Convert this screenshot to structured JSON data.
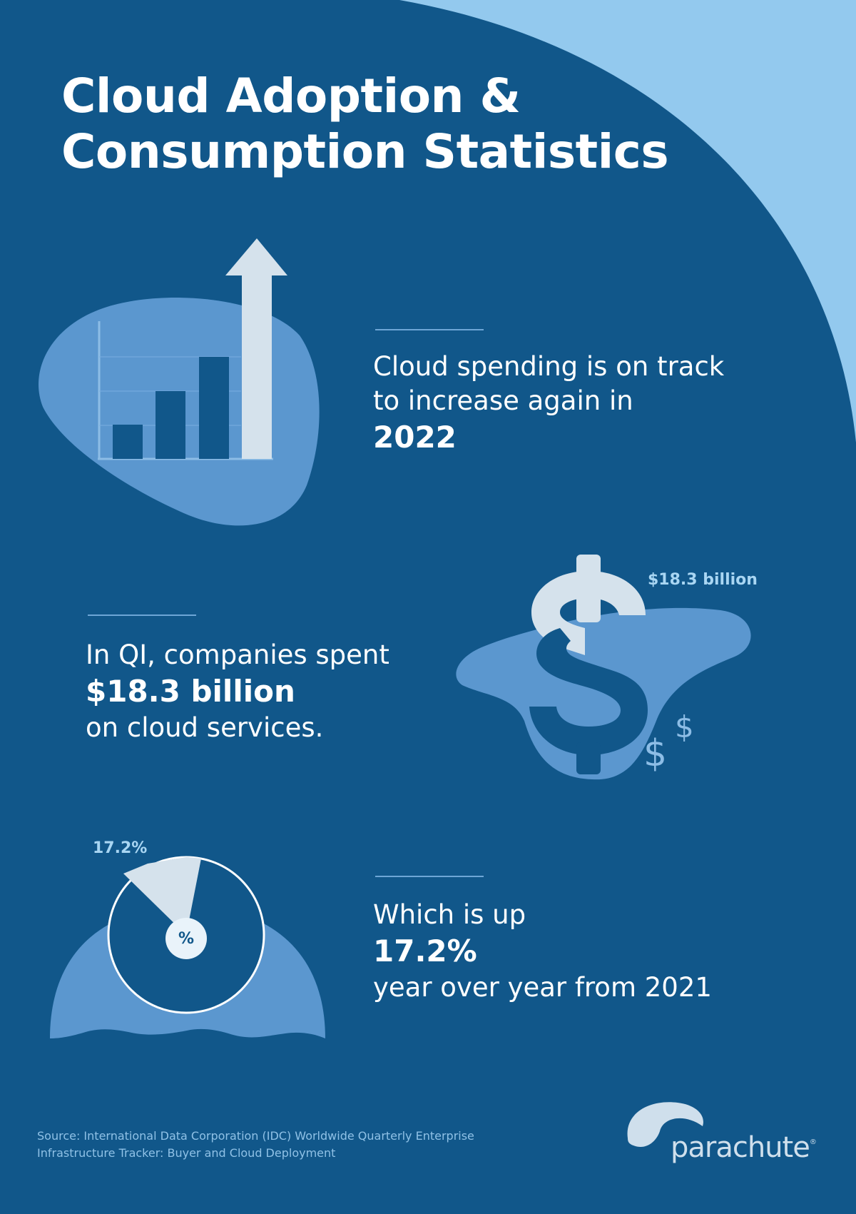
{
  "title": {
    "line1": "Cloud Adoption &",
    "line2": "Consumption Statistics"
  },
  "stat1": {
    "line1": "Cloud spending is on track",
    "line2": "to increase again in",
    "highlight": "2022"
  },
  "stat2": {
    "line1": "In QI, companies spent",
    "highlight": "$18.3 billion",
    "line3": "on cloud services.",
    "graphic_label": "$18.3 billion",
    "dollar_small_1": "$",
    "dollar_small_2": "$"
  },
  "stat3": {
    "line1": "Which is up",
    "highlight": "17.2%",
    "line3": "year over year from 2021",
    "graphic_label": "17.2%",
    "center_symbol": "%",
    "slice_fraction": 0.172
  },
  "source": {
    "line1": "Source: International Data Corporation (IDC) Worldwide Quarterly Enterprise",
    "line2": "Infrastructure Tracker: Buyer and Cloud Deployment"
  },
  "logo": {
    "name": "parachute",
    "mark": "®"
  },
  "colors": {
    "background": "#11578a",
    "corner": "#93c9ee",
    "blob": "#5b97cf",
    "light": "#d5e2ec",
    "accent_label": "#a9d6f3"
  }
}
